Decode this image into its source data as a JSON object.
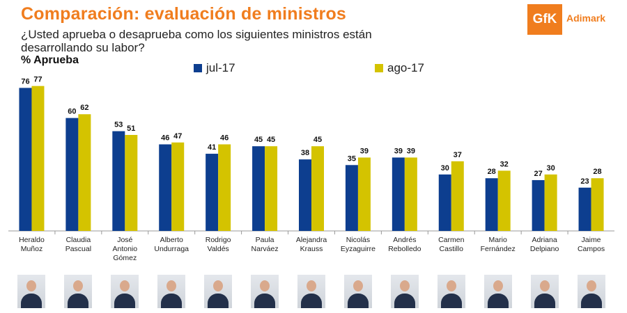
{
  "header": {
    "title": "Comparación: evaluación de ministros",
    "subtitle": "¿Usted aprueba o desaprueba como los siguientes ministros están desarrollando su labor?",
    "metric_label": "% Aprueba"
  },
  "logo": {
    "mark": "GfK",
    "text": "Adimark",
    "color": "#f07d1e"
  },
  "colors": {
    "series_1": "#0d3e8f",
    "series_2": "#d4c300",
    "title": "#f07d1e",
    "baseline": "#999999"
  },
  "chart_data": {
    "type": "bar",
    "categories": [
      "Heraldo Muñoz",
      "Claudia Pascual",
      "José Antonio Gómez",
      "Alberto Undurraga",
      "Rodrigo Valdés",
      "Paula Narváez",
      "Alejandra Krauss",
      "Nicolás Eyzaguirre",
      "Andrés Rebolledo",
      "Carmen Castillo",
      "Mario Fernández",
      "Adriana Delpiano",
      "Jaime Campos"
    ],
    "category_lines": [
      [
        "Heraldo",
        "Muñoz"
      ],
      [
        "Claudia",
        "Pascual"
      ],
      [
        "José",
        "Antonio",
        "Gómez"
      ],
      [
        "Alberto",
        "Undurraga"
      ],
      [
        "Rodrigo",
        "Valdés"
      ],
      [
        "Paula",
        "Narváez"
      ],
      [
        "Alejandra",
        "Krauss"
      ],
      [
        "Nicolás",
        "Eyzaguirre"
      ],
      [
        "Andrés",
        "Rebolledo"
      ],
      [
        "Carmen",
        "Castillo"
      ],
      [
        "Mario",
        "Fernández"
      ],
      [
        "Adriana",
        "Delpiano"
      ],
      [
        "Jaime",
        "Campos"
      ]
    ],
    "series": [
      {
        "name": "jul-17",
        "values": [
          76,
          60,
          53,
          46,
          41,
          45,
          38,
          35,
          39,
          30,
          28,
          27,
          23
        ]
      },
      {
        "name": "ago-17",
        "values": [
          77,
          62,
          51,
          47,
          46,
          45,
          45,
          39,
          39,
          37,
          32,
          30,
          28
        ]
      }
    ],
    "ylim": [
      0,
      85
    ],
    "grid": false,
    "legend": "top"
  }
}
